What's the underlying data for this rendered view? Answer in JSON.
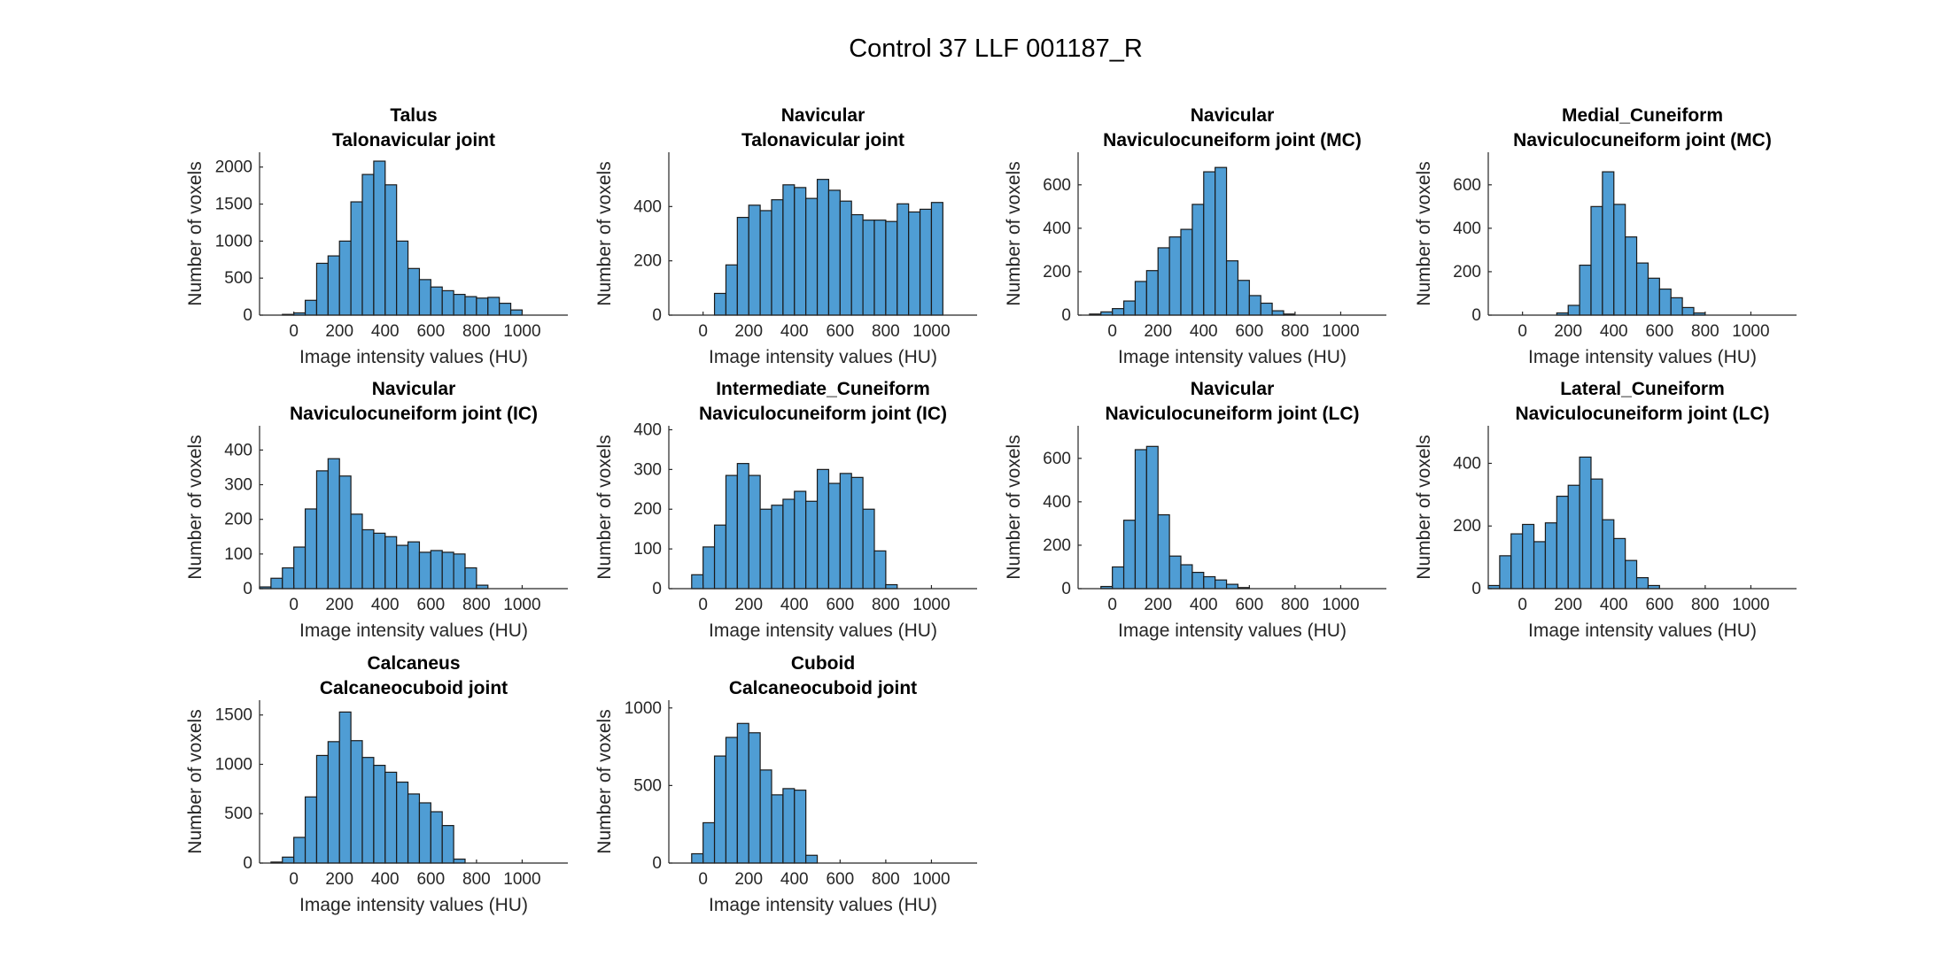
{
  "figure": {
    "title": "Control 37 LLF 001187_R"
  },
  "colors": {
    "bar_fill": "#4f9dd4",
    "bar_edge": "#1a1a1a",
    "axis": "#262626"
  },
  "chart_data": [
    {
      "type": "bar",
      "title": [
        "Talus",
        "Talonavicular joint"
      ],
      "xlabel": "Image intensity values (HU)",
      "ylabel": "Number of voxels",
      "xlim": [
        -150,
        1200
      ],
      "ylim": [
        0,
        2200
      ],
      "xticks": [
        "0",
        "200",
        "400",
        "600",
        "800",
        "1000"
      ],
      "yticks": [
        "0",
        "500",
        "1000",
        "1500",
        "2000"
      ],
      "bin_start": -50,
      "bin_width": 50,
      "values": [
        10,
        30,
        200,
        700,
        800,
        1000,
        1530,
        1900,
        2080,
        1760,
        1000,
        630,
        480,
        380,
        330,
        280,
        250,
        230,
        240,
        160,
        70
      ]
    },
    {
      "type": "bar",
      "title": [
        "Navicular",
        "Talonavicular joint"
      ],
      "xlabel": "Image intensity values (HU)",
      "ylabel": "Number of voxels",
      "xlim": [
        -150,
        1200
      ],
      "ylim": [
        0,
        600
      ],
      "xticks": [
        "0",
        "200",
        "400",
        "600",
        "800",
        "1000"
      ],
      "yticks": [
        "0",
        "200",
        "400"
      ],
      "bin_start": 50,
      "bin_width": 50,
      "values": [
        80,
        185,
        360,
        405,
        385,
        425,
        480,
        470,
        430,
        500,
        460,
        420,
        370,
        350,
        350,
        345,
        410,
        380,
        390,
        415
      ]
    },
    {
      "type": "bar",
      "title": [
        "Navicular",
        "Naviculocuneiform joint (MC)"
      ],
      "xlabel": "Image intensity values (HU)",
      "ylabel": "Number of voxels",
      "xlim": [
        -150,
        1200
      ],
      "ylim": [
        0,
        750
      ],
      "xticks": [
        "0",
        "200",
        "400",
        "600",
        "800",
        "1000"
      ],
      "yticks": [
        "0",
        "200",
        "400",
        "600"
      ],
      "bin_start": -100,
      "bin_width": 50,
      "values": [
        5,
        15,
        30,
        65,
        155,
        205,
        310,
        360,
        395,
        510,
        660,
        680,
        250,
        160,
        90,
        55,
        20,
        5
      ]
    },
    {
      "type": "bar",
      "title": [
        "Medial_Cuneiform",
        "Naviculocuneiform joint (MC)"
      ],
      "xlabel": "Image intensity values (HU)",
      "ylabel": "Number of voxels",
      "xlim": [
        -150,
        1200
      ],
      "ylim": [
        0,
        750
      ],
      "xticks": [
        "0",
        "200",
        "400",
        "600",
        "800",
        "1000"
      ],
      "yticks": [
        "0",
        "200",
        "400",
        "600"
      ],
      "bin_start": 150,
      "bin_width": 50,
      "values": [
        10,
        45,
        230,
        500,
        660,
        510,
        360,
        240,
        170,
        120,
        80,
        35,
        10
      ]
    },
    {
      "type": "bar",
      "title": [
        "Navicular",
        "Naviculocuneiform joint (IC)"
      ],
      "xlabel": "Image intensity values (HU)",
      "ylabel": "Number of voxels",
      "xlim": [
        -150,
        1200
      ],
      "ylim": [
        0,
        470
      ],
      "xticks": [
        "0",
        "200",
        "400",
        "600",
        "800",
        "1000"
      ],
      "yticks": [
        "0",
        "100",
        "200",
        "300",
        "400"
      ],
      "bin_start": -150,
      "bin_width": 50,
      "values": [
        5,
        30,
        60,
        120,
        230,
        340,
        375,
        325,
        215,
        170,
        160,
        150,
        125,
        135,
        105,
        110,
        105,
        100,
        60,
        10
      ]
    },
    {
      "type": "bar",
      "title": [
        "Intermediate_Cuneiform",
        "Naviculocuneiform joint (IC)"
      ],
      "xlabel": "Image intensity values (HU)",
      "ylabel": "Number of voxels",
      "xlim": [
        -150,
        1200
      ],
      "ylim": [
        0,
        410
      ],
      "xticks": [
        "0",
        "200",
        "400",
        "600",
        "800",
        "1000"
      ],
      "yticks": [
        "0",
        "100",
        "200",
        "300",
        "400"
      ],
      "bin_start": -50,
      "bin_width": 50,
      "values": [
        35,
        105,
        160,
        285,
        315,
        285,
        200,
        210,
        225,
        245,
        220,
        300,
        265,
        290,
        280,
        200,
        95,
        10
      ]
    },
    {
      "type": "bar",
      "title": [
        "Navicular",
        "Naviculocuneiform joint (LC)"
      ],
      "xlabel": "Image intensity values (HU)",
      "ylabel": "Number of voxels",
      "xlim": [
        -150,
        1200
      ],
      "ylim": [
        0,
        750
      ],
      "xticks": [
        "0",
        "200",
        "400",
        "600",
        "800",
        "1000"
      ],
      "yticks": [
        "0",
        "200",
        "400",
        "600"
      ],
      "bin_start": -50,
      "bin_width": 50,
      "values": [
        10,
        100,
        315,
        640,
        655,
        340,
        150,
        110,
        75,
        55,
        40,
        20,
        5
      ]
    },
    {
      "type": "bar",
      "title": [
        "Lateral_Cuneiform",
        "Naviculocuneiform joint (LC)"
      ],
      "xlabel": "Image intensity values (HU)",
      "ylabel": "Number of voxels",
      "xlim": [
        -150,
        1200
      ],
      "ylim": [
        0,
        520
      ],
      "xticks": [
        "0",
        "200",
        "400",
        "600",
        "800",
        "1000"
      ],
      "yticks": [
        "0",
        "200",
        "400"
      ],
      "bin_start": -150,
      "bin_width": 50,
      "values": [
        10,
        105,
        175,
        205,
        150,
        210,
        295,
        330,
        420,
        350,
        220,
        160,
        90,
        35,
        10
      ]
    },
    {
      "type": "bar",
      "title": [
        "Calcaneus",
        "Calcaneocuboid joint"
      ],
      "xlabel": "Image intensity values (HU)",
      "ylabel": "Number of voxels",
      "xlim": [
        -150,
        1200
      ],
      "ylim": [
        0,
        1650
      ],
      "xticks": [
        "0",
        "200",
        "400",
        "600",
        "800",
        "1000"
      ],
      "yticks": [
        "0",
        "500",
        "1000",
        "1500"
      ],
      "bin_start": -100,
      "bin_width": 50,
      "values": [
        10,
        60,
        260,
        670,
        1090,
        1230,
        1530,
        1240,
        1070,
        990,
        920,
        820,
        700,
        610,
        520,
        380,
        40
      ]
    },
    {
      "type": "bar",
      "title": [
        "Cuboid",
        "Calcaneocuboid joint"
      ],
      "xlabel": "Image intensity values (HU)",
      "ylabel": "Number of voxels",
      "xlim": [
        -150,
        1200
      ],
      "ylim": [
        0,
        1050
      ],
      "xticks": [
        "0",
        "200",
        "400",
        "600",
        "800",
        "1000"
      ],
      "yticks": [
        "0",
        "500",
        "1000"
      ],
      "bin_start": -50,
      "bin_width": 50,
      "values": [
        60,
        260,
        690,
        810,
        900,
        840,
        600,
        440,
        480,
        470,
        50
      ]
    }
  ]
}
